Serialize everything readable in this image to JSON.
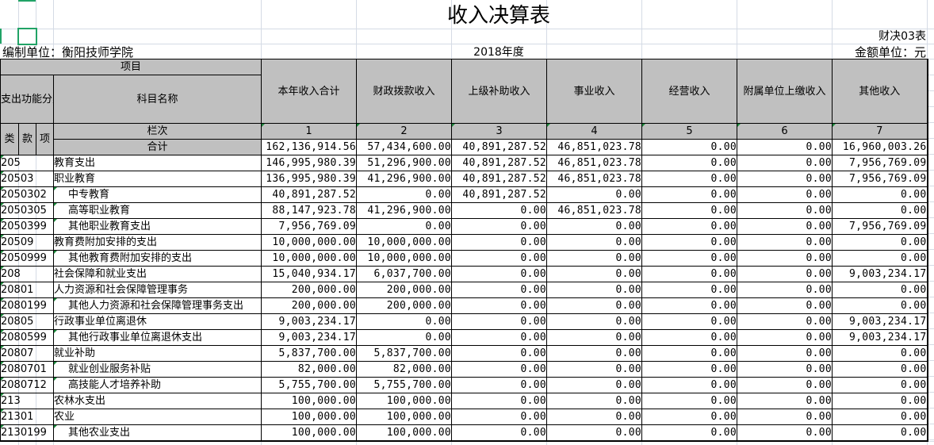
{
  "title": "收入决算表",
  "form_no": "财决03表",
  "unit_label": "编制单位：衡阳技师学院",
  "year": "2018年度",
  "money_unit": "金额单位：元",
  "header": {
    "item": "项目",
    "code_group": "支出功能分类科目编码",
    "name": "科目名称",
    "lei": "类",
    "kuan": "款",
    "xiang": "项",
    "column_no": "栏次",
    "total": "合计",
    "columns": [
      "本年收入合计",
      "财政拨款收入",
      "上级补助收入",
      "事业收入",
      "经营收入",
      "附属单位上缴收入",
      "其他收入"
    ],
    "column_numbers": [
      "1",
      "2",
      "3",
      "4",
      "5",
      "6",
      "7"
    ]
  },
  "totals": [
    "162,136,914.56",
    "57,434,600.00",
    "40,891,287.52",
    "46,851,023.78",
    "0.00",
    "0.00",
    "16,960,003.26"
  ],
  "rows": [
    {
      "code": "205",
      "name": "教育支出",
      "indent": false,
      "values": [
        "146,995,980.39",
        "51,296,900.00",
        "40,891,287.52",
        "46,851,023.78",
        "0.00",
        "0.00",
        "7,956,769.09"
      ]
    },
    {
      "code": "20503",
      "name": "职业教育",
      "indent": false,
      "values": [
        "136,995,980.39",
        "41,296,900.00",
        "40,891,287.52",
        "46,851,023.78",
        "0.00",
        "0.00",
        "7,956,769.09"
      ]
    },
    {
      "code": "2050302",
      "name": "中专教育",
      "indent": true,
      "values": [
        "40,891,287.52",
        "0.00",
        "40,891,287.52",
        "0.00",
        "0.00",
        "0.00",
        "0.00"
      ]
    },
    {
      "code": "2050305",
      "name": "高等职业教育",
      "indent": true,
      "values": [
        "88,147,923.78",
        "41,296,900.00",
        "0.00",
        "46,851,023.78",
        "0.00",
        "0.00",
        "0.00"
      ]
    },
    {
      "code": "2050399",
      "name": "其他职业教育支出",
      "indent": true,
      "values": [
        "7,956,769.09",
        "0.00",
        "0.00",
        "0.00",
        "0.00",
        "0.00",
        "7,956,769.09"
      ]
    },
    {
      "code": "20509",
      "name": "教育费附加安排的支出",
      "indent": false,
      "values": [
        "10,000,000.00",
        "10,000,000.00",
        "0.00",
        "0.00",
        "0.00",
        "0.00",
        "0.00"
      ]
    },
    {
      "code": "2050999",
      "name": "其他教育费附加安排的支出",
      "indent": true,
      "values": [
        "10,000,000.00",
        "10,000,000.00",
        "0.00",
        "0.00",
        "0.00",
        "0.00",
        "0.00"
      ]
    },
    {
      "code": "208",
      "name": "社会保障和就业支出",
      "indent": false,
      "values": [
        "15,040,934.17",
        "6,037,700.00",
        "0.00",
        "0.00",
        "0.00",
        "0.00",
        "9,003,234.17"
      ]
    },
    {
      "code": "20801",
      "name": "人力资源和社会保障管理事务",
      "indent": false,
      "values": [
        "200,000.00",
        "200,000.00",
        "0.00",
        "0.00",
        "0.00",
        "0.00",
        "0.00"
      ]
    },
    {
      "code": "2080199",
      "name": "其他人力资源和社会保障管理事务支出",
      "indent": true,
      "values": [
        "200,000.00",
        "200,000.00",
        "0.00",
        "0.00",
        "0.00",
        "0.00",
        "0.00"
      ]
    },
    {
      "code": "20805",
      "name": "行政事业单位离退休",
      "indent": false,
      "values": [
        "9,003,234.17",
        "0.00",
        "0.00",
        "0.00",
        "0.00",
        "0.00",
        "9,003,234.17"
      ]
    },
    {
      "code": "2080599",
      "name": "其他行政事业单位离退休支出",
      "indent": true,
      "values": [
        "9,003,234.17",
        "0.00",
        "0.00",
        "0.00",
        "0.00",
        "0.00",
        "9,003,234.17"
      ]
    },
    {
      "code": "20807",
      "name": "就业补助",
      "indent": false,
      "values": [
        "5,837,700.00",
        "5,837,700.00",
        "0.00",
        "0.00",
        "0.00",
        "0.00",
        "0.00"
      ]
    },
    {
      "code": "2080701",
      "name": "就业创业服务补贴",
      "indent": true,
      "values": [
        "82,000.00",
        "82,000.00",
        "0.00",
        "0.00",
        "0.00",
        "0.00",
        "0.00"
      ]
    },
    {
      "code": "2080712",
      "name": "高技能人才培养补助",
      "indent": true,
      "values": [
        "5,755,700.00",
        "5,755,700.00",
        "0.00",
        "0.00",
        "0.00",
        "0.00",
        "0.00"
      ]
    },
    {
      "code": "213",
      "name": "农林水支出",
      "indent": false,
      "values": [
        "100,000.00",
        "100,000.00",
        "0.00",
        "0.00",
        "0.00",
        "0.00",
        "0.00"
      ]
    },
    {
      "code": "21301",
      "name": "农业",
      "indent": false,
      "values": [
        "100,000.00",
        "100,000.00",
        "0.00",
        "0.00",
        "0.00",
        "0.00",
        "0.00"
      ]
    },
    {
      "code": "2130199",
      "name": "其他农业支出",
      "indent": true,
      "values": [
        "100,000.00",
        "100,000.00",
        "0.00",
        "0.00",
        "0.00",
        "0.00",
        "0.00"
      ]
    }
  ],
  "colors": {
    "header_bg": "#c0c0c0",
    "selection": "#21a366",
    "gridline": "#d5dbe5"
  }
}
